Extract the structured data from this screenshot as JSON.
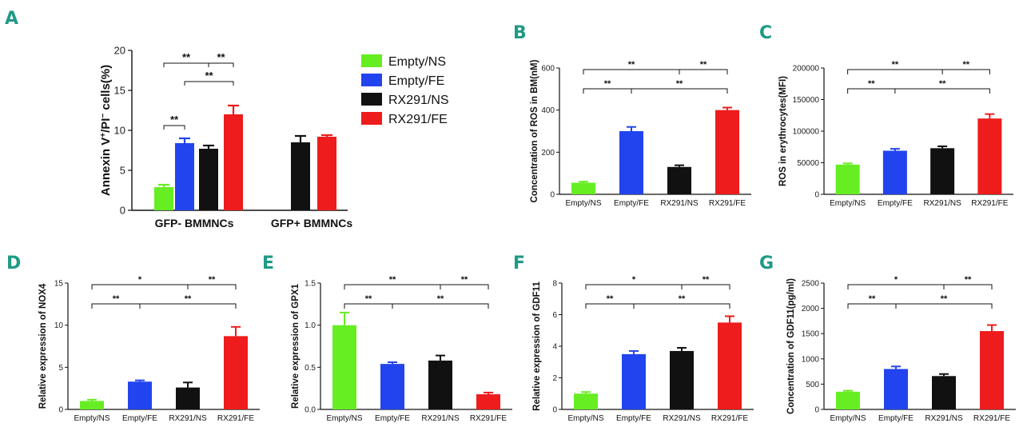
{
  "colors": {
    "Empty/NS": "#66ee22",
    "Empty/FE": "#2244ee",
    "RX291/NS": "#111111",
    "RX291/FE": "#ee1c1c",
    "panel_letter": "#1e9a86"
  },
  "legend": [
    "Empty/NS",
    "Empty/FE",
    "RX291/NS",
    "RX291/FE"
  ],
  "chart_data": [
    {
      "id": "A",
      "panel": "A",
      "type": "bar",
      "ylabel_main": "Annexin V",
      "ylabel_sup1": "+",
      "ylabel_mid": "/PI",
      "ylabel_sup2": "−",
      "ylabel_end": " cells(%)",
      "xlabel": "",
      "groups": [
        "GFP- BMMNCs",
        "GFP+ BMMNCs"
      ],
      "series": [
        {
          "name": "Empty/NS",
          "values": [
            2.9,
            null
          ],
          "errors": [
            0.3,
            null
          ]
        },
        {
          "name": "Empty/FE",
          "values": [
            8.4,
            null
          ],
          "errors": [
            0.6,
            null
          ]
        },
        {
          "name": "RX291/NS",
          "values": [
            7.7,
            8.5
          ],
          "errors": [
            0.4,
            0.8
          ]
        },
        {
          "name": "RX291/FE",
          "values": [
            12.0,
            9.2
          ],
          "errors": [
            1.1,
            0.2
          ]
        }
      ],
      "ylim": [
        0,
        20
      ],
      "yticks": [
        0,
        5,
        10,
        15,
        20
      ],
      "significance": [
        {
          "from": 0,
          "to": 1,
          "label": "**"
        },
        {
          "from": 1,
          "to": 3,
          "label": "**"
        },
        {
          "from": 0,
          "to": 3,
          "label": "**",
          "mid": 2
        }
      ]
    },
    {
      "id": "B",
      "panel": "B",
      "type": "bar",
      "ylabel": "Concentration of ROS in BM(nM)",
      "categories": [
        "Empty/NS",
        "Empty/FE",
        "RX291/NS",
        "RX291/FE"
      ],
      "values": [
        55,
        300,
        130,
        400
      ],
      "errors": [
        5,
        20,
        8,
        12
      ],
      "ylim": [
        0,
        600
      ],
      "yticks": [
        0,
        200,
        400,
        600
      ],
      "significance": [
        {
          "from": 0,
          "to": 3,
          "label": "**",
          "mid": 2
        },
        {
          "from": 0,
          "to": 3,
          "label": "**",
          "mid": 1
        }
      ]
    },
    {
      "id": "C",
      "panel": "C",
      "type": "bar",
      "ylabel": "ROS in erythrocytes(MFI)",
      "categories": [
        "Empty/NS",
        "Empty/FE",
        "RX291/NS",
        "RX291/FE"
      ],
      "values": [
        47000,
        69000,
        73000,
        120000
      ],
      "errors": [
        2000,
        3000,
        3000,
        7000
      ],
      "ylim": [
        0,
        200000
      ],
      "yticks": [
        0,
        50000,
        100000,
        150000,
        200000
      ],
      "significance": [
        {
          "from": 0,
          "to": 3,
          "label": "**",
          "mid": 2
        },
        {
          "from": 0,
          "to": 3,
          "label": "**",
          "mid": 1
        }
      ]
    },
    {
      "id": "D",
      "panel": "D",
      "type": "bar",
      "ylabel": "Relative expression of NOX4",
      "categories": [
        "Empty/NS",
        "Empty/FE",
        "RX291/NS",
        "RX291/FE"
      ],
      "values": [
        1.0,
        3.3,
        2.6,
        8.7
      ],
      "errors": [
        0.15,
        0.15,
        0.6,
        1.1
      ],
      "ylim": [
        0,
        15
      ],
      "yticks": [
        0,
        5,
        10,
        15
      ],
      "significance": [
        {
          "from": 0,
          "to": 3,
          "label": "*",
          "mid": 2
        },
        {
          "from": 0,
          "to": 3,
          "label": "**",
          "mid": 1
        }
      ]
    },
    {
      "id": "E",
      "panel": "E",
      "type": "bar",
      "ylabel": "Relative expression of GPX1",
      "categories": [
        "Empty/NS",
        "Empty/FE",
        "RX291/NS",
        "RX291/FE"
      ],
      "values": [
        1.0,
        0.54,
        0.58,
        0.18
      ],
      "errors": [
        0.15,
        0.02,
        0.06,
        0.02
      ],
      "ylim": [
        0,
        1.5
      ],
      "yticks": [
        0.0,
        0.5,
        1.0,
        1.5
      ],
      "ytick_labels": [
        "0.0",
        "0.5",
        "1.0",
        "1.5"
      ],
      "significance": [
        {
          "from": 0,
          "to": 3,
          "label": "**",
          "mid": 2
        },
        {
          "from": 0,
          "to": 3,
          "label": "**",
          "mid": 1
        }
      ]
    },
    {
      "id": "F",
      "panel": "F",
      "type": "bar",
      "ylabel": "Relative expression of GDF11",
      "categories": [
        "Empty/NS",
        "Empty/FE",
        "RX291/NS",
        "RX291/FE"
      ],
      "values": [
        1.0,
        3.5,
        3.7,
        5.5
      ],
      "errors": [
        0.1,
        0.2,
        0.2,
        0.4
      ],
      "ylim": [
        0,
        8
      ],
      "yticks": [
        0,
        2,
        4,
        6,
        8
      ],
      "significance": [
        {
          "from": 0,
          "to": 3,
          "label": "*",
          "mid": 2
        },
        {
          "from": 0,
          "to": 3,
          "label": "**",
          "mid": 1
        }
      ]
    },
    {
      "id": "G",
      "panel": "G",
      "type": "bar",
      "ylabel": "Concentration of GDF11(pg/ml)",
      "categories": [
        "Empty/NS",
        "Empty/FE",
        "RX291/NS",
        "RX291/FE"
      ],
      "values": [
        350,
        800,
        660,
        1550
      ],
      "errors": [
        20,
        50,
        40,
        120
      ],
      "ylim": [
        0,
        2500
      ],
      "yticks": [
        0,
        500,
        1000,
        1500,
        2000,
        2500
      ],
      "significance": [
        {
          "from": 0,
          "to": 3,
          "label": "*",
          "mid": 2
        },
        {
          "from": 0,
          "to": 3,
          "label": "**",
          "mid": 1
        }
      ]
    }
  ]
}
